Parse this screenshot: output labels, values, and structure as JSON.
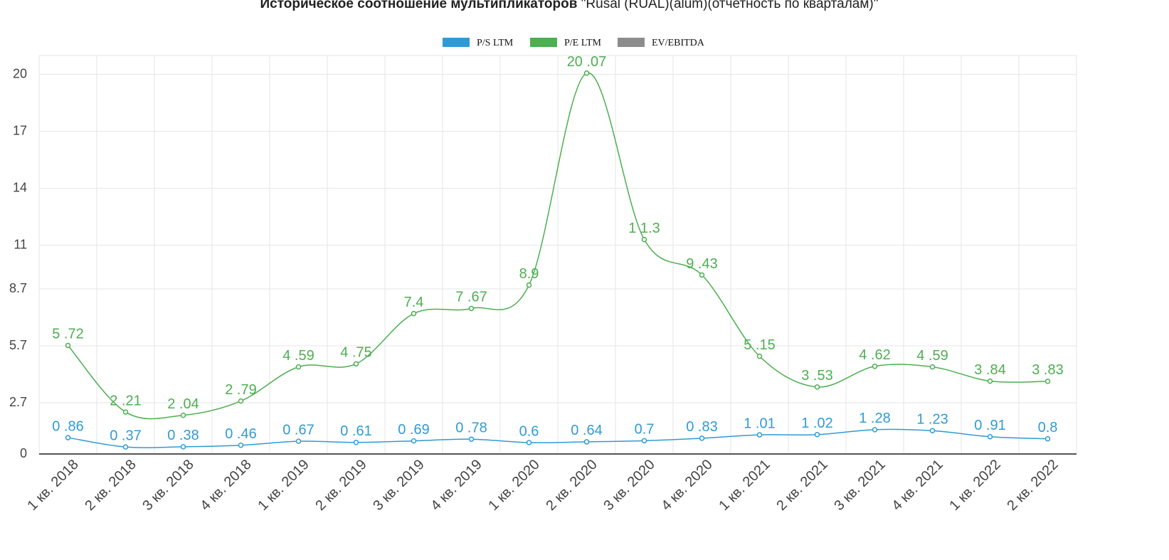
{
  "chart_data": {
    "type": "line",
    "title": "Историческое соотношение мультипликаторов",
    "title_detail": "\"Rusal (RUAL)(alum)(отчетность по кварталам)\"",
    "categories": [
      "1 кв. 2018",
      "2 кв. 2018",
      "3 кв. 2018",
      "4 кв. 2018",
      "1 кв. 2019",
      "2 кв. 2019",
      "3 кв. 2019",
      "4 кв. 2019",
      "1 кв. 2020",
      "2 кв. 2020",
      "3 кв. 2020",
      "4 кв. 2020",
      "1 кв. 2021",
      "2 кв. 2021",
      "3 кв. 2021",
      "4 кв. 2021",
      "1 кв. 2022",
      "2 кв. 2022"
    ],
    "series": [
      {
        "name": "P/S LTM",
        "color": "#2e9bd6",
        "values": [
          0.86,
          0.37,
          0.38,
          0.46,
          0.67,
          0.61,
          0.69,
          0.78,
          0.6,
          0.64,
          0.7,
          0.83,
          1.01,
          1.02,
          1.28,
          1.23,
          0.91,
          0.8
        ],
        "value_labels": [
          "0 .86",
          "0 .37",
          "0 .38",
          "0 .46",
          "0 .67",
          "0 .61",
          "0 .69",
          "0 .78",
          "0.6",
          "0 .64",
          "0.7",
          "0 .83",
          "1 .01",
          "1 .02",
          "1 .28",
          "1 .23",
          "0 .91",
          "0.8"
        ]
      },
      {
        "name": "P/E LTM",
        "color": "#4caf50",
        "values": [
          5.72,
          2.21,
          2.04,
          2.79,
          4.59,
          4.75,
          7.4,
          7.67,
          8.9,
          20.07,
          11.3,
          9.43,
          5.15,
          3.53,
          4.62,
          4.59,
          3.84,
          3.83
        ],
        "value_labels": [
          "5 .72",
          "2 .21",
          "2 .04",
          "2 .79",
          "4 .59",
          "4 .75",
          "7.4",
          "7 .67",
          "8.9",
          "20 .07",
          "1 1.3",
          "9 .43",
          "5 .15",
          "3 .53",
          "4 .62",
          "4 .59",
          "3 .84",
          "3 .83"
        ]
      },
      {
        "name": "EV/EBITDA",
        "color": "#8c8c8c",
        "values": [
          null,
          null,
          null,
          null,
          null,
          null,
          null,
          null,
          null,
          null,
          null,
          null,
          null,
          null,
          null,
          null,
          null,
          null
        ]
      }
    ],
    "ylim": [
      0,
      21
    ],
    "yticks": [
      0,
      2.7,
      5.7,
      8.7,
      11,
      14,
      17,
      20
    ],
    "grid": true
  }
}
